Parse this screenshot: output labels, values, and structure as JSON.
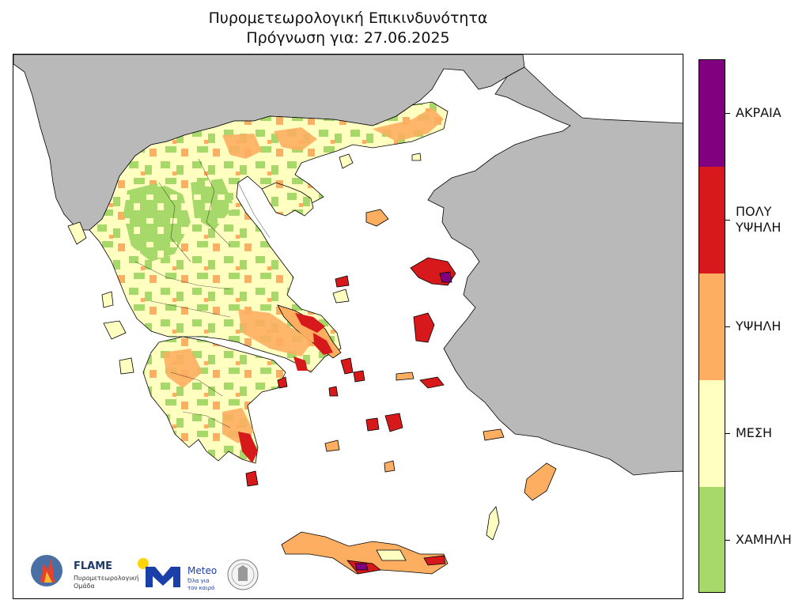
{
  "title": "Πυρομετεωρολογική Επικινδυνότητα",
  "subtitle": "Πρόγνωση για: 27.06.2025",
  "legend": {
    "levels": [
      {
        "label": "ΑΚΡΑΙΑ",
        "color": "#800080"
      },
      {
        "label": "ΠΟΛΥ\nΥΨΗΛΗ",
        "color": "#d7191c"
      },
      {
        "label": "ΥΨΗΛΗ",
        "color": "#fdae61"
      },
      {
        "label": "ΜΕΣΗ",
        "color": "#ffffc0"
      },
      {
        "label": "ΧΑΜΗΛΗ",
        "color": "#a6d96a"
      }
    ]
  },
  "map": {
    "sea_color": "#ffffff",
    "neighbor_land_color": "#b9b9b9",
    "border_color": "#000000"
  },
  "logos": {
    "flame_name": "FLAME",
    "flame_subtitle_1": "Πυρομετεωρολογική",
    "flame_subtitle_2": "Ομάδα",
    "meteo_name": "Meteo",
    "meteo_tagline_1": "Όλα για",
    "meteo_tagline_2": "τον καιρό"
  }
}
